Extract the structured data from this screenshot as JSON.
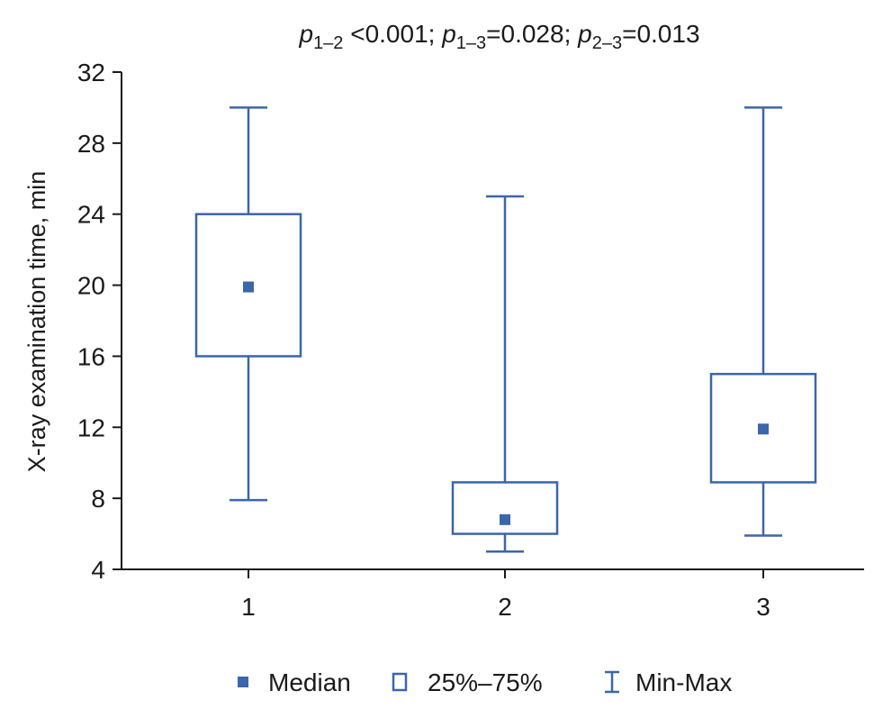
{
  "chart_data": {
    "type": "box",
    "title_parts": [
      {
        "text": "p",
        "italic": true
      },
      {
        "text": "1–2",
        "sub": true
      },
      {
        "text": " <0.001; "
      },
      {
        "text": "p",
        "italic": true
      },
      {
        "text": "1–3",
        "sub": true
      },
      {
        "text": "=0.028; "
      },
      {
        "text": "p",
        "italic": true
      },
      {
        "text": "2–3",
        "sub": true
      },
      {
        "text": "=0.013"
      }
    ],
    "ylabel": "X-ray examination time, min",
    "xlabel": "",
    "ylim": [
      4,
      32
    ],
    "yticks": [
      "4",
      "8",
      "12",
      "16",
      "20",
      "24",
      "28",
      "32"
    ],
    "categories": [
      "1",
      "2",
      "3"
    ],
    "boxes": [
      {
        "group": "1",
        "min": 7.9,
        "q1": 16,
        "median": 19.9,
        "q3": 24,
        "max": 30
      },
      {
        "group": "2",
        "min": 5,
        "q1": 6,
        "median": 6.8,
        "q3": 8.9,
        "max": 25
      },
      {
        "group": "3",
        "min": 5.9,
        "q1": 8.9,
        "median": 11.9,
        "q3": 15,
        "max": 30
      }
    ],
    "legend": [
      {
        "symbol": "filled-square",
        "label": "Median"
      },
      {
        "symbol": "open-square",
        "label": "25%–75%"
      },
      {
        "symbol": "whisker",
        "label": "Min-Max"
      }
    ],
    "legend_position": "bottom-center",
    "color": "#3b66aa",
    "axis_color": "#1a1a1a"
  }
}
